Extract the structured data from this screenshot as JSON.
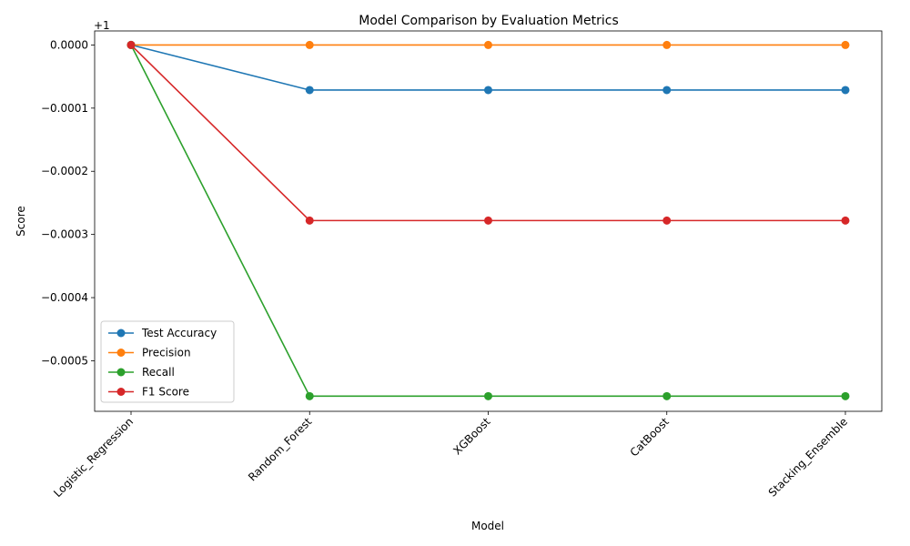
{
  "chart_data": {
    "type": "line",
    "title": "Model Comparison by Evaluation Metrics",
    "xlabel": "Model",
    "ylabel": "Score",
    "offset_label": "+1",
    "categories": [
      "Logistic_Regression",
      "Random_Forest",
      "XGBoost",
      "CatBoost",
      "Stacking_Ensemble"
    ],
    "ylim": [
      -0.00058,
      2.22e-05
    ],
    "yticks": [
      0,
      -0.0001,
      -0.0002,
      -0.0003,
      -0.0004,
      -0.0005
    ],
    "ytick_labels": [
      "0.0000",
      "−0.0001",
      "−0.0002",
      "−0.0003",
      "−0.0004",
      "−0.0005"
    ],
    "grid": false,
    "legend_position": "lower-left",
    "series": [
      {
        "name": "Test Accuracy",
        "color": "#1f77b4",
        "values": [
          0,
          -7.14e-05,
          -7.14e-05,
          -7.14e-05,
          -7.14e-05
        ]
      },
      {
        "name": "Precision",
        "color": "#ff7f0e",
        "values": [
          0,
          0,
          0,
          0,
          0
        ]
      },
      {
        "name": "Recall",
        "color": "#2ca02c",
        "values": [
          0,
          -0.000556,
          -0.000556,
          -0.000556,
          -0.000556
        ]
      },
      {
        "name": "F1 Score",
        "color": "#d62728",
        "values": [
          0,
          -0.000278,
          -0.000278,
          -0.000278,
          -0.000278
        ]
      }
    ]
  }
}
